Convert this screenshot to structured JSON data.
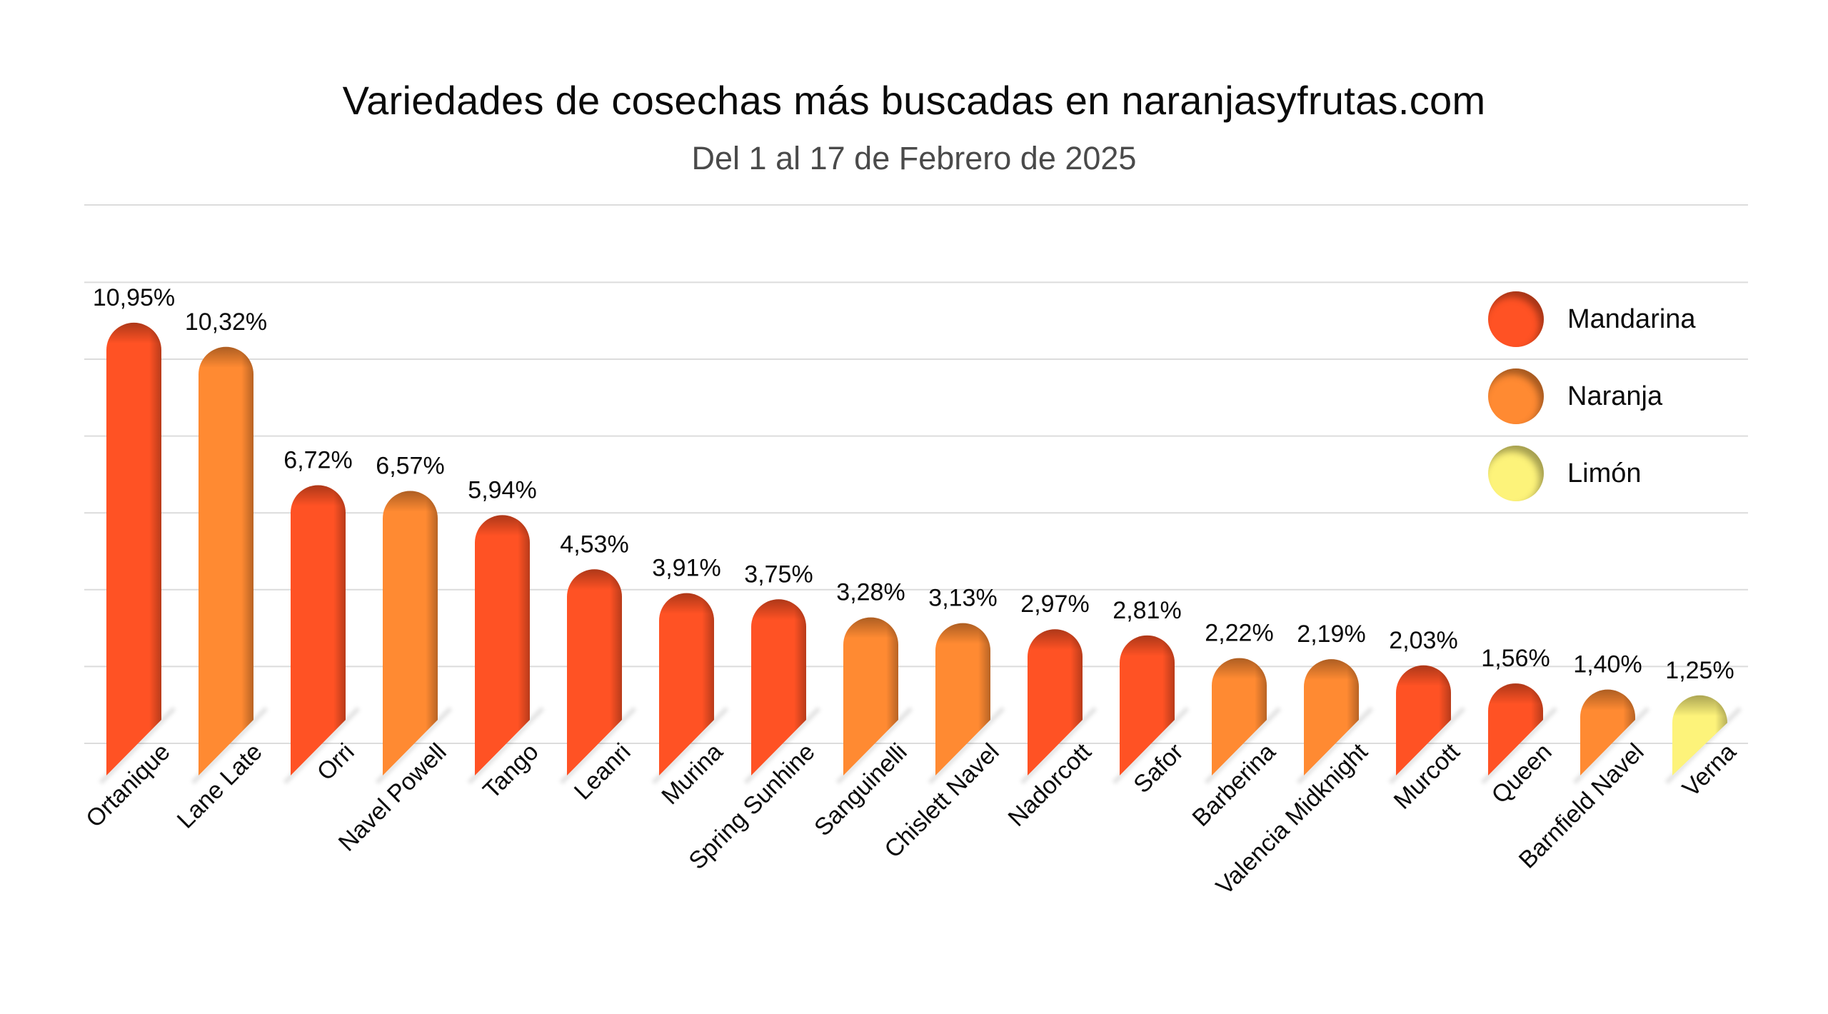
{
  "header": {
    "title": "Variedades de cosechas más buscadas en naranjasyfrutas.com",
    "subtitle": "Del 1 al 17 de Febrero de 2025"
  },
  "colors": {
    "Mandarina": "#FF5224",
    "Naranja": "#FF8A32",
    "Limón": "#FDF37A",
    "gridline": "#dcdcdc",
    "text": "#0a0a0a"
  },
  "legend": {
    "items": [
      {
        "label": "Mandarina",
        "color": "#FF5224"
      },
      {
        "label": "Naranja",
        "color": "#FF8A32"
      },
      {
        "label": "Limón",
        "color": "#FDF37A"
      }
    ]
  },
  "chart_data": {
    "type": "bar",
    "title": "Variedades de cosechas más buscadas en naranjasyfrutas.com",
    "subtitle": "Del 1 al 17 de Febrero de 2025",
    "xlabel": "",
    "ylabel": "",
    "ylim": [
      0,
      12
    ],
    "grid": true,
    "gridline_step": 2,
    "value_format": "percent_comma_decimal",
    "legend_position": "top-right",
    "categories": [
      "Ortanique",
      "Lane Late",
      "Orri",
      "Navel Powell",
      "Tango",
      "Leanri",
      "Murina",
      "Spring Sunhine",
      "Sanguinelli",
      "Chislett Navel",
      "Nadorcott",
      "Safor",
      "Barberina",
      "Valencia Midknight",
      "Murcott",
      "Queen",
      "Barnfield Navel",
      "Verna"
    ],
    "values": [
      10.95,
      10.32,
      6.72,
      6.57,
      5.94,
      4.53,
      3.91,
      3.75,
      3.28,
      3.13,
      2.97,
      2.81,
      2.22,
      2.19,
      2.03,
      1.56,
      1.4,
      1.25
    ],
    "labels": [
      "10,95%",
      "10,32%",
      "6,72%",
      "6,57%",
      "5,94%",
      "4,53%",
      "3,91%",
      "3,75%",
      "3,28%",
      "3,13%",
      "2,97%",
      "2,81%",
      "2,22%",
      "2,19%",
      "2,03%",
      "1,56%",
      "1,40%",
      "1,25%"
    ],
    "groups": [
      "Mandarina",
      "Naranja",
      "Mandarina",
      "Naranja",
      "Mandarina",
      "Mandarina",
      "Mandarina",
      "Mandarina",
      "Naranja",
      "Naranja",
      "Mandarina",
      "Mandarina",
      "Naranja",
      "Naranja",
      "Mandarina",
      "Mandarina",
      "Naranja",
      "Limón"
    ],
    "series": [
      {
        "name": "Mandarina",
        "color": "#FF5224"
      },
      {
        "name": "Naranja",
        "color": "#FF8A32"
      },
      {
        "name": "Limón",
        "color": "#FDF37A"
      }
    ]
  }
}
